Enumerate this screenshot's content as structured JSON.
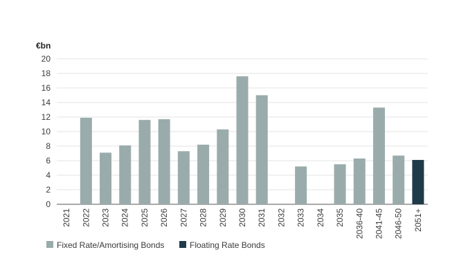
{
  "chart_data": {
    "type": "bar",
    "ylabel": "€bn",
    "ylim": [
      0,
      20
    ],
    "yticks": [
      0,
      2,
      4,
      6,
      8,
      10,
      12,
      14,
      16,
      18,
      20
    ],
    "grid": true,
    "legend_position": "bottom-left",
    "categories": [
      "2021",
      "2022",
      "2023",
      "2024",
      "2025",
      "2026",
      "2027",
      "2028",
      "2029",
      "2030",
      "2031",
      "2032",
      "2033",
      "2034",
      "2035",
      "2036-40",
      "2041-45",
      "2046-50",
      "2051+"
    ],
    "series": [
      {
        "name": "Fixed Rate/Amortising Bonds",
        "color": "#9aabab",
        "values": [
          0,
          11.9,
          7.1,
          8.1,
          11.6,
          11.7,
          7.3,
          8.2,
          10.3,
          17.6,
          15.0,
          0,
          5.2,
          0,
          5.5,
          6.3,
          13.3,
          6.7,
          0
        ]
      },
      {
        "name": "Floating Rate Bonds",
        "color": "#1f3b4a",
        "values": [
          0,
          0,
          0,
          0,
          0,
          0,
          0,
          0,
          0,
          0,
          0,
          0,
          0,
          0,
          0,
          0,
          0,
          0,
          6.1
        ]
      }
    ]
  }
}
